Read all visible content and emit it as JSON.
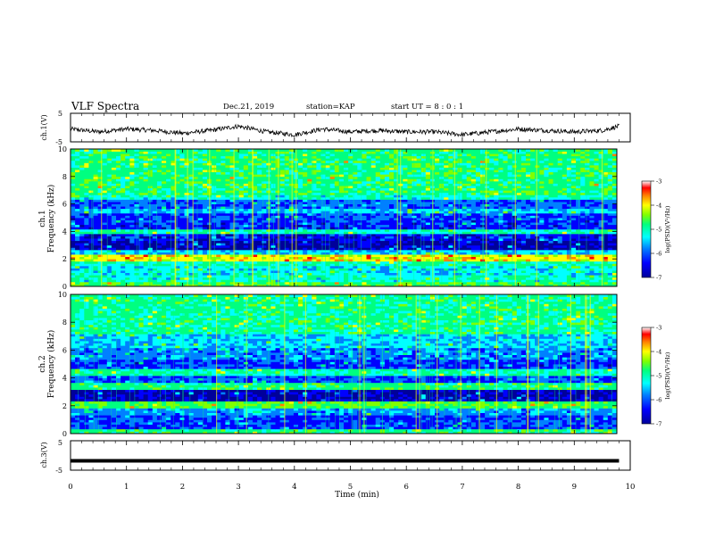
{
  "header": {
    "title": "VLF Spectra",
    "date": "Dec.21, 2019",
    "station": "station=KAP",
    "start": "start  UT =  8 : 0 : 1"
  },
  "chart_data": [
    {
      "type": "line",
      "ylabel": "ch.1(V)",
      "ylim": [
        -5,
        5
      ],
      "yticks": [
        "5",
        "-5"
      ],
      "xlim": [
        0,
        10
      ],
      "description_of_series": "noisy waveform oscillating roughly between -3 and 2 V",
      "series": [
        {
          "x": [
            0,
            0.5,
            1,
            1.5,
            2,
            2.5,
            3,
            3.5,
            4,
            4.5,
            5,
            5.5,
            6,
            6.5,
            7,
            7.5,
            8,
            8.5,
            9,
            9.5,
            9.8
          ],
          "values": [
            -0.5,
            -1.5,
            -0.5,
            -1,
            -2,
            -1,
            0.5,
            -1.5,
            -2.5,
            -0.5,
            -1.5,
            -1,
            -1.5,
            -1.5,
            -2.5,
            -1.5,
            -0.5,
            -1,
            -1.5,
            -1,
            0.5
          ]
        }
      ]
    },
    {
      "type": "heatmap",
      "ylabel": "ch.1\nFrequency (kHz)",
      "ylim": [
        0,
        10
      ],
      "yticks": [
        "0",
        "2",
        "4",
        "6",
        "8",
        "10"
      ],
      "xlim": [
        0,
        10
      ],
      "colorbar": {
        "label": "log(PSD)(V²/Hz)",
        "range": [
          -7,
          -3
        ],
        "ticks": [
          "-3",
          "-4",
          "-5",
          "-6",
          "-7"
        ]
      }
    },
    {
      "type": "heatmap",
      "ylabel": "ch.2\nFrequency (kHz)",
      "ylim": [
        0,
        10
      ],
      "yticks": [
        "0",
        "2",
        "4",
        "6",
        "8",
        "10"
      ],
      "xlim": [
        0,
        10
      ],
      "colorbar": {
        "label": "log(PSD)(V²/Hz)",
        "range": [
          -7,
          -3
        ],
        "ticks": [
          "-3",
          "-4",
          "-5",
          "-6",
          "-7"
        ]
      }
    },
    {
      "type": "line",
      "ylabel": "ch.3(V)",
      "ylim": [
        -5,
        5
      ],
      "yticks": [
        "5",
        "-5"
      ],
      "xlim": [
        0,
        10
      ],
      "series": [
        {
          "x": [
            0,
            9.8
          ],
          "values": [
            -1.8,
            -1.8
          ]
        }
      ]
    }
  ],
  "x_axis": {
    "label": "Time (min)",
    "ticks": [
      "0",
      "1",
      "2",
      "3",
      "4",
      "5",
      "6",
      "7",
      "8",
      "9",
      "10"
    ]
  },
  "colors": {
    "colormap": [
      "#00009a",
      "#0000ff",
      "#0080ff",
      "#00ffff",
      "#00ff80",
      "#80ff00",
      "#ffff00",
      "#ff8000",
      "#ff0000",
      "#ffffff"
    ],
    "axis": "#000000"
  }
}
